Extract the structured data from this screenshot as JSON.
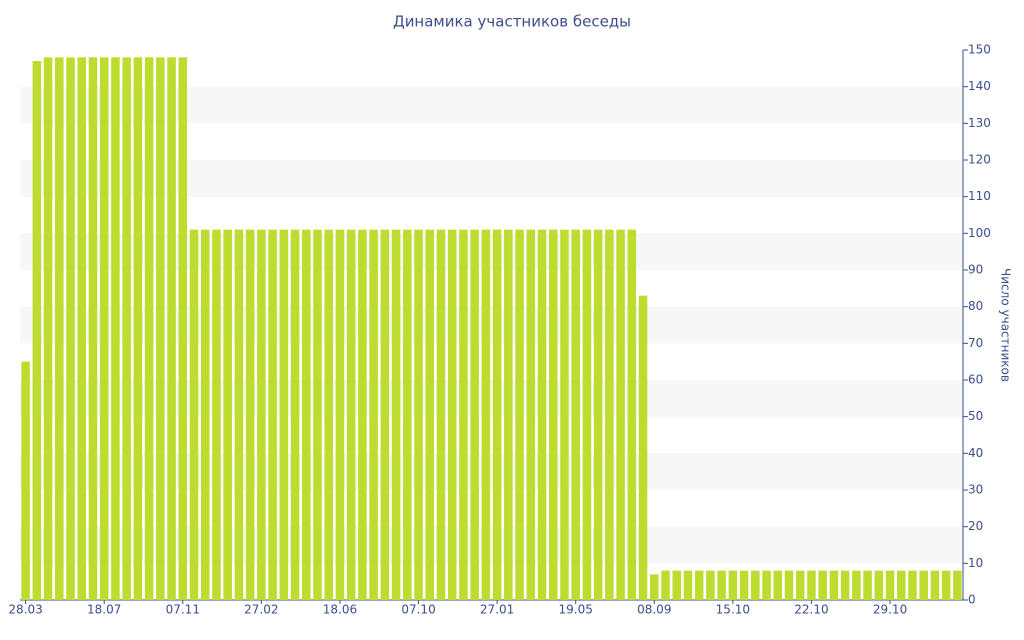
{
  "chart_data": {
    "type": "bar",
    "title": "Динамика участников беседы",
    "y_label": "Число участников",
    "categories": [
      "28.03",
      null,
      null,
      null,
      null,
      null,
      null,
      "18.07",
      null,
      null,
      null,
      null,
      null,
      null,
      "07.11",
      null,
      null,
      null,
      null,
      null,
      null,
      "27.02",
      null,
      null,
      null,
      null,
      null,
      null,
      "18.06",
      null,
      null,
      null,
      null,
      null,
      null,
      "07.10",
      null,
      null,
      null,
      null,
      null,
      null,
      "27.01",
      null,
      null,
      null,
      null,
      null,
      null,
      "19.05",
      null,
      null,
      null,
      null,
      null,
      null,
      "08.09",
      null,
      null,
      null,
      null,
      null,
      null,
      "15.10",
      null,
      null,
      null,
      null,
      null,
      null,
      "22.10",
      null,
      null,
      null,
      null,
      null,
      null,
      "29.10",
      null,
      null,
      null,
      null,
      null,
      null
    ],
    "values": [
      65,
      147,
      148,
      148,
      148,
      148,
      148,
      148,
      148,
      148,
      148,
      148,
      148,
      148,
      148,
      101,
      101,
      101,
      101,
      101,
      101,
      101,
      101,
      101,
      101,
      101,
      101,
      101,
      101,
      101,
      101,
      101,
      101,
      101,
      101,
      101,
      101,
      101,
      101,
      101,
      101,
      101,
      101,
      101,
      101,
      101,
      101,
      101,
      101,
      101,
      101,
      101,
      101,
      101,
      101,
      83,
      7,
      8,
      8,
      8,
      8,
      8,
      8,
      8,
      8,
      8,
      8,
      8,
      8,
      8,
      8,
      8,
      8,
      8,
      8,
      8,
      8,
      8,
      8,
      8,
      8,
      8,
      8,
      8
    ],
    "color": "#bddc2f",
    "ylim": [
      0,
      150
    ],
    "yticks": [
      0,
      10,
      20,
      30,
      40,
      50,
      60,
      70,
      80,
      90,
      100,
      110,
      120,
      130,
      140,
      150
    ],
    "grid": true
  }
}
